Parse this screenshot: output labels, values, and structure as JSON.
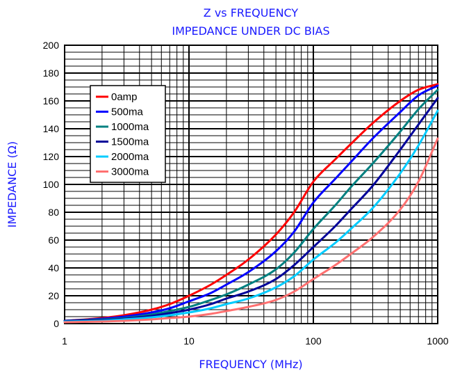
{
  "chart_data": {
    "type": "line",
    "title": "Z vs FREQUENCY",
    "subtitle": "IMPEDANCE UNDER DC BIAS",
    "xlabel": "FREQUENCY (MHz)",
    "ylabel": "IMPEDANCE (Ω)",
    "x_scale": "log",
    "xlim": [
      1,
      1000
    ],
    "ylim": [
      0,
      200
    ],
    "grid": true,
    "legend_position": "upper-left",
    "x_ticks": [
      "1",
      "10",
      "100",
      "1000"
    ],
    "y_ticks": [
      "0",
      "20",
      "40",
      "60",
      "80",
      "100",
      "120",
      "140",
      "160",
      "180",
      "200"
    ],
    "x": [
      1,
      2,
      3,
      5,
      7,
      10,
      15,
      20,
      30,
      50,
      70,
      100,
      150,
      200,
      300,
      500,
      700,
      1000
    ],
    "series": [
      {
        "name": "0amp",
        "color": "#ff0000",
        "values": [
          2,
          4,
          6,
          10,
          14,
          20,
          28,
          35,
          46,
          64,
          80,
          102,
          118,
          129,
          144,
          160,
          168,
          172
        ]
      },
      {
        "name": "500ma",
        "color": "#0000ff",
        "values": [
          2,
          3.5,
          5,
          8,
          11,
          16,
          22,
          28,
          37,
          52,
          66,
          87,
          104,
          116,
          133,
          152,
          164,
          171
        ]
      },
      {
        "name": "1000ma",
        "color": "#008080",
        "values": [
          2,
          3,
          4,
          6.5,
          9,
          12,
          17,
          21,
          28,
          39,
          51,
          68,
          85,
          98,
          115,
          138,
          154,
          168
        ]
      },
      {
        "name": "1500ma",
        "color": "#000099",
        "values": [
          2,
          2.5,
          3.5,
          5.5,
          7.5,
          10,
          14,
          18,
          23,
          32,
          42,
          55,
          70,
          82,
          99,
          125,
          143,
          162
        ]
      },
      {
        "name": "2000ma",
        "color": "#00ccff",
        "values": [
          1.5,
          2,
          3,
          4.5,
          6,
          8,
          11,
          14,
          18,
          26,
          34,
          46,
          58,
          68,
          83,
          108,
          128,
          153
        ]
      },
      {
        "name": "3000ma",
        "color": "#ff7070",
        "values": [
          1,
          1.5,
          2,
          3,
          4,
          5,
          7,
          9,
          12,
          17,
          23,
          32,
          42,
          50,
          62,
          82,
          102,
          133
        ]
      }
    ]
  }
}
